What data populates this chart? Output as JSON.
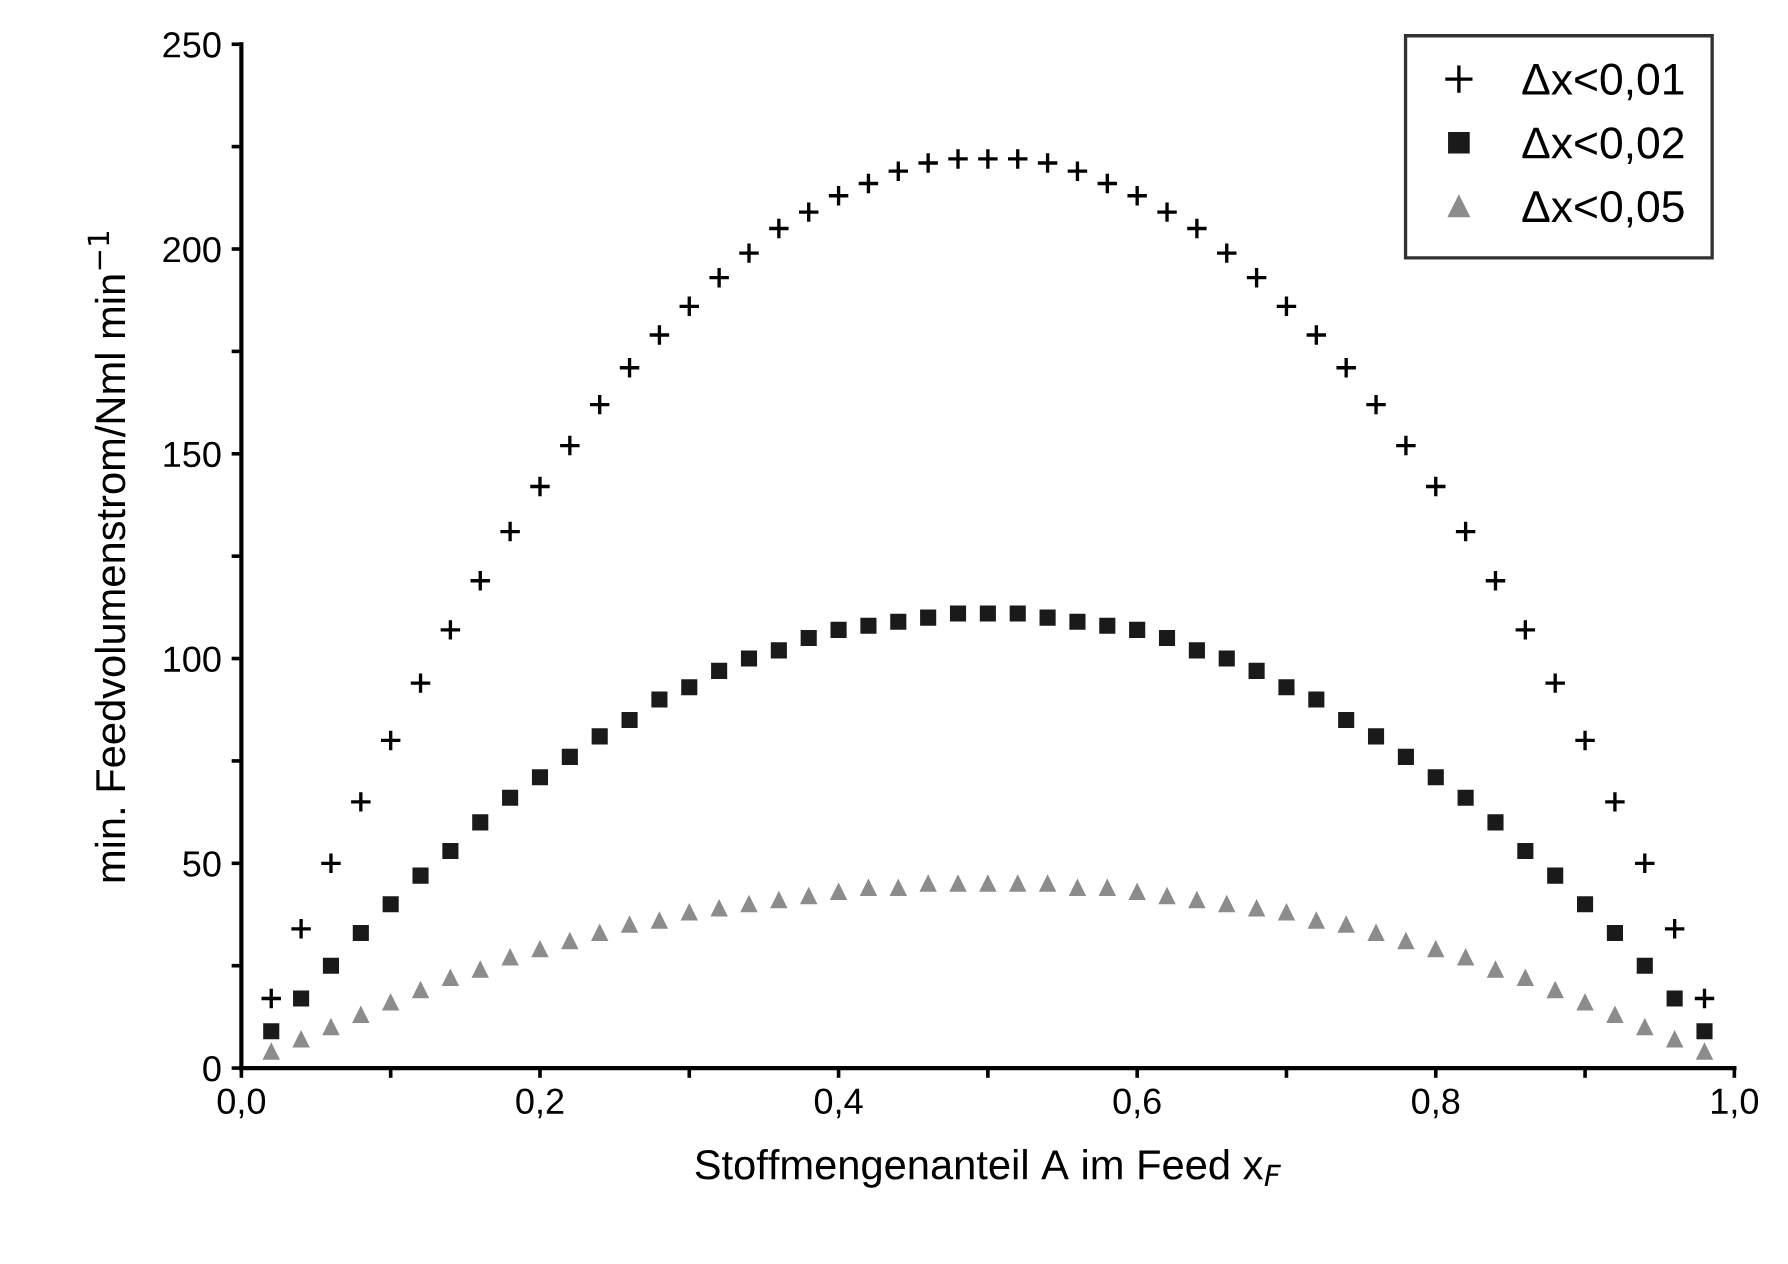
{
  "chart_data": {
    "type": "scatter",
    "xlabel": "Stoffmengenanteil A im Feed x$_{F}$",
    "ylabel": "min. Feedvolumenstrom/Nml min$^{−1}$",
    "x": [
      0.02,
      0.04,
      0.06,
      0.08,
      0.1,
      0.12,
      0.14,
      0.16,
      0.18,
      0.2,
      0.22,
      0.24,
      0.26,
      0.28,
      0.3,
      0.32,
      0.34,
      0.36,
      0.38,
      0.4,
      0.42,
      0.44,
      0.46,
      0.48,
      0.5,
      0.52,
      0.54,
      0.56,
      0.58,
      0.6,
      0.62,
      0.64,
      0.66,
      0.68,
      0.7,
      0.72,
      0.74,
      0.76,
      0.78,
      0.8,
      0.82,
      0.84,
      0.86,
      0.88,
      0.9,
      0.92,
      0.94,
      0.96,
      0.98
    ],
    "series": [
      {
        "name": "Δx<0,01",
        "color": "#000000",
        "marker": "cross",
        "values": [
          17,
          34,
          50,
          65,
          80,
          94,
          107,
          119,
          131,
          142,
          152,
          162,
          171,
          179,
          186,
          193,
          199,
          205,
          209,
          213,
          216,
          219,
          221,
          222,
          222,
          222,
          221,
          219,
          216,
          213,
          209,
          205,
          199,
          193,
          186,
          179,
          171,
          162,
          152,
          142,
          131,
          119,
          107,
          94,
          80,
          65,
          50,
          34,
          17
        ]
      },
      {
        "name": "Δx<0,02",
        "color": "#1a1a1a",
        "marker": "square",
        "values": [
          9,
          17,
          25,
          33,
          40,
          47,
          53,
          60,
          66,
          71,
          76,
          81,
          85,
          90,
          93,
          97,
          100,
          102,
          105,
          107,
          108,
          109,
          110,
          111,
          111,
          111,
          110,
          109,
          108,
          107,
          105,
          102,
          100,
          97,
          93,
          90,
          85,
          81,
          76,
          71,
          66,
          60,
          53,
          47,
          40,
          33,
          25,
          17,
          9
        ]
      },
      {
        "name": "Δx<0,05",
        "color": "#8c8c8c",
        "marker": "triangle",
        "values": [
          4,
          7,
          10,
          13,
          16,
          19,
          22,
          24,
          27,
          29,
          31,
          33,
          35,
          36,
          38,
          39,
          40,
          41,
          42,
          43,
          44,
          44,
          45,
          45,
          45,
          45,
          45,
          44,
          44,
          43,
          42,
          41,
          40,
          39,
          38,
          36,
          35,
          33,
          31,
          29,
          27,
          24,
          22,
          19,
          16,
          13,
          10,
          7,
          4
        ]
      }
    ],
    "xlim": [
      0.0,
      1.0
    ],
    "xticks": [
      {
        "value": 0.0,
        "label": "0,0"
      },
      {
        "value": 0.1,
        "label": null
      },
      {
        "value": 0.2,
        "label": "0,2"
      },
      {
        "value": 0.3,
        "label": null
      },
      {
        "value": 0.4,
        "label": "0,4"
      },
      {
        "value": 0.5,
        "label": null
      },
      {
        "value": 0.6,
        "label": "0,6"
      },
      {
        "value": 0.7,
        "label": null
      },
      {
        "value": 0.8,
        "label": "0,8"
      },
      {
        "value": 0.9,
        "label": null
      },
      {
        "value": 1.0,
        "label": "1,0"
      }
    ],
    "ylim": [
      0,
      250
    ],
    "yticks": [
      0,
      {
        "value": 25,
        "label": null
      },
      50,
      {
        "value": 75,
        "label": null
      },
      100,
      {
        "value": 125,
        "label": null
      },
      150,
      {
        "value": 175,
        "label": null
      },
      200,
      {
        "value": 225,
        "label": null
      },
      250
    ],
    "grid": false,
    "legend": "top right"
  }
}
